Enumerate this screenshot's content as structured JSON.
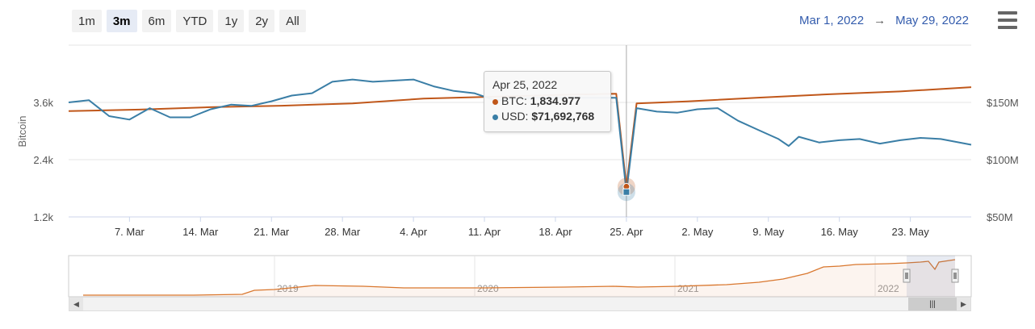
{
  "range_buttons": [
    {
      "label": "1m",
      "active": false
    },
    {
      "label": "3m",
      "active": true
    },
    {
      "label": "6m",
      "active": false
    },
    {
      "label": "YTD",
      "active": false
    },
    {
      "label": "1y",
      "active": false
    },
    {
      "label": "2y",
      "active": false
    },
    {
      "label": "All",
      "active": false
    }
  ],
  "date_range": {
    "from": "Mar 1, 2022",
    "arrow": "→",
    "to": "May 29, 2022"
  },
  "tooltip": {
    "date": "Apr 25, 2022",
    "btc_label": "BTC:",
    "btc_value": "1,834.977",
    "usd_label": "USD:",
    "usd_value": "$71,692,768"
  },
  "colors": {
    "btc": "#c0571a",
    "usd": "#3a7ea6",
    "navigator": "#d9772e"
  },
  "icons": {
    "menu": "hamburger-icon",
    "scroll_left": "chevron-left-icon",
    "scroll_right": "chevron-right-icon",
    "thumb": "grip-icon"
  },
  "chart_data": {
    "type": "line",
    "x_start": "2022-03-01",
    "x_end": "2022-05-29",
    "x_tick_labels": [
      "7. Mar",
      "14. Mar",
      "21. Mar",
      "28. Mar",
      "4. Apr",
      "11. Apr",
      "18. Apr",
      "25. Apr",
      "2. May",
      "9. May",
      "16. May",
      "23. May"
    ],
    "x_tick_dates": [
      "2022-03-07",
      "2022-03-14",
      "2022-03-21",
      "2022-03-28",
      "2022-04-04",
      "2022-04-11",
      "2022-04-18",
      "2022-04-25",
      "2022-05-02",
      "2022-05-09",
      "2022-05-16",
      "2022-05-23"
    ],
    "y_left": {
      "label": "Bitcoin",
      "ticks": [
        1200,
        2400,
        3600
      ],
      "tick_labels": [
        "1.2k",
        "2.4k",
        "3.6k"
      ],
      "range": [
        1200,
        4800
      ]
    },
    "y_right": {
      "ticks": [
        50000000,
        100000000,
        150000000
      ],
      "tick_labels": [
        "$50M",
        "$100M",
        "$150M"
      ],
      "range": [
        50000000,
        200000000
      ]
    },
    "grid": true,
    "series": [
      {
        "name": "BTC",
        "axis": "left",
        "dates": [
          "2022-03-01",
          "2022-03-08",
          "2022-03-15",
          "2022-03-22",
          "2022-03-29",
          "2022-04-05",
          "2022-04-12",
          "2022-04-19",
          "2022-04-24",
          "2022-04-25",
          "2022-04-26",
          "2022-05-01",
          "2022-05-08",
          "2022-05-15",
          "2022-05-22",
          "2022-05-29"
        ],
        "values": [
          3420,
          3450,
          3500,
          3530,
          3580,
          3680,
          3720,
          3760,
          3780,
          1835,
          3580,
          3620,
          3700,
          3770,
          3830,
          3920
        ]
      },
      {
        "name": "USD",
        "axis": "right",
        "dates": [
          "2022-03-01",
          "2022-03-03",
          "2022-03-05",
          "2022-03-07",
          "2022-03-09",
          "2022-03-11",
          "2022-03-13",
          "2022-03-15",
          "2022-03-17",
          "2022-03-19",
          "2022-03-21",
          "2022-03-23",
          "2022-03-25",
          "2022-03-27",
          "2022-03-29",
          "2022-03-31",
          "2022-04-02",
          "2022-04-04",
          "2022-04-06",
          "2022-04-08",
          "2022-04-10",
          "2022-04-12",
          "2022-04-14",
          "2022-04-16",
          "2022-04-18",
          "2022-04-20",
          "2022-04-22",
          "2022-04-24",
          "2022-04-25",
          "2022-04-26",
          "2022-04-28",
          "2022-04-30",
          "2022-05-02",
          "2022-05-04",
          "2022-05-06",
          "2022-05-08",
          "2022-05-10",
          "2022-05-11",
          "2022-05-12",
          "2022-05-14",
          "2022-05-16",
          "2022-05-18",
          "2022-05-20",
          "2022-05-22",
          "2022-05-24",
          "2022-05-26",
          "2022-05-29"
        ],
        "values": [
          150000000,
          152000000,
          138000000,
          135000000,
          145000000,
          137000000,
          137000000,
          144000000,
          148000000,
          147000000,
          151000000,
          156000000,
          158000000,
          168000000,
          170000000,
          168000000,
          169000000,
          170000000,
          164000000,
          160000000,
          158000000,
          152000000,
          153000000,
          154000000,
          154000000,
          154000000,
          154000000,
          154000000,
          71692768,
          145000000,
          142000000,
          141000000,
          144000000,
          145000000,
          134000000,
          126000000,
          118000000,
          112000000,
          120000000,
          115000000,
          117000000,
          118000000,
          114000000,
          117000000,
          119000000,
          118000000,
          113000000
        ]
      }
    ],
    "navigator": {
      "labels": [
        "2019",
        "2020",
        "2021",
        "2022"
      ]
    }
  }
}
